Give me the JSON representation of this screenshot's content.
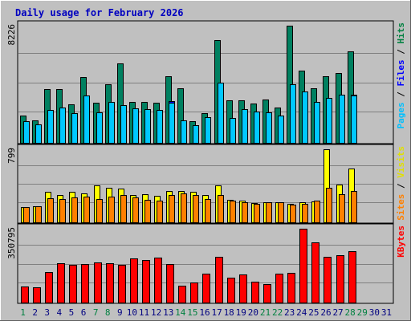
{
  "chart_data": {
    "type": "bar",
    "title": "Daily usage for February 2026",
    "days": [
      "1",
      "2",
      "3",
      "4",
      "5",
      "6",
      "7",
      "8",
      "9",
      "10",
      "11",
      "12",
      "13",
      "14",
      "15",
      "16",
      "17",
      "18",
      "19",
      "20",
      "21",
      "22",
      "23",
      "24",
      "25",
      "26",
      "27",
      "28",
      "29",
      "30",
      "31"
    ],
    "weekend_days": [
      "1",
      "7",
      "8",
      "14",
      "15",
      "21",
      "22",
      "28",
      "29"
    ],
    "panels": [
      {
        "id": "top",
        "ymax": 8226,
        "ymax_label": "8226",
        "right_label": [
          {
            "text": "Pages",
            "color": "#00c0ff"
          },
          {
            "text": " / ",
            "color": "#000000"
          },
          {
            "text": "Files",
            "color": "#0000ff"
          },
          {
            "text": " / ",
            "color": "#000000"
          },
          {
            "text": "Hits",
            "color": "#008040"
          }
        ],
        "series": [
          {
            "name": "Hits",
            "color": "#008060",
            "values": [
              1970,
              1640,
              3800,
              3800,
              2720,
              4620,
              2880,
              4130,
              5570,
              2930,
              2930,
              2880,
              4680,
              3860,
              1550,
              2110,
              7210,
              3040,
              3040,
              2800,
              3090,
              2500,
              8226,
              5080,
              3840,
              4680,
              4950,
              6440,
              0,
              0,
              0
            ]
          },
          {
            "name": "Files",
            "color": "#0000ff",
            "values": [
              1560,
              1320,
              2340,
              2530,
              2120,
              2990,
              2180,
              2930,
              2660,
              2470,
              2390,
              2330,
              2960,
              1600,
              1310,
              1840,
              3560,
              1790,
              2390,
              2250,
              2180,
              1960,
              3880,
              3530,
              2890,
              3210,
              3150,
              3390,
              0,
              0,
              0
            ]
          },
          {
            "name": "Pages",
            "color": "#00c8ff",
            "values": [
              1560,
              1320,
              2340,
              2530,
              2120,
              3330,
              2180,
              2930,
              2660,
              2470,
              2390,
              2330,
              2840,
              1600,
              1310,
              1840,
              4240,
              1790,
              2390,
              2250,
              2180,
              1960,
              4130,
              3640,
              2890,
              3210,
              3420,
              3330,
              0,
              0,
              0
            ]
          }
        ]
      },
      {
        "id": "middle",
        "ymax": 799,
        "ymax_label": "799",
        "right_label": [
          {
            "text": "Sites",
            "color": "#ff8000"
          },
          {
            "text": " / ",
            "color": "#000000"
          },
          {
            "text": "Visits",
            "color": "#e0e000"
          }
        ],
        "series": [
          {
            "name": "Visits",
            "color": "#ffff00",
            "values": [
              175,
              185,
              340,
              300,
              340,
              320,
              410,
              385,
              370,
              300,
              315,
              295,
              345,
              345,
              340,
              305,
              410,
              255,
              240,
              215,
              230,
              225,
              210,
              230,
              235,
              799,
              420,
              590,
              0,
              0,
              0
            ]
          },
          {
            "name": "Sites",
            "color": "#ff8000",
            "values": [
              175,
              185,
              265,
              260,
              275,
              285,
              260,
              290,
              300,
              275,
              255,
              245,
              300,
              320,
              305,
              260,
              300,
              245,
              225,
              210,
              225,
              230,
              200,
              210,
              240,
              385,
              310,
              350,
              0,
              0,
              0
            ]
          }
        ]
      },
      {
        "id": "bottom",
        "ymax": 350795,
        "ymax_label": "350795",
        "right_label": [
          {
            "text": "KBytes",
            "color": "#ff0000"
          }
        ],
        "series": [
          {
            "name": "KBytes",
            "color": "#ff0000",
            "values": [
              80000,
              77000,
              148000,
              187000,
              180000,
              185000,
              193000,
              187000,
              180000,
              210000,
              205000,
              215000,
              185000,
              82000,
              98000,
              138000,
              220000,
              120000,
              135000,
              102000,
              92000,
              138000,
              145000,
              350795,
              285000,
              220000,
              225000,
              245000,
              0,
              0,
              0
            ]
          }
        ]
      }
    ]
  }
}
